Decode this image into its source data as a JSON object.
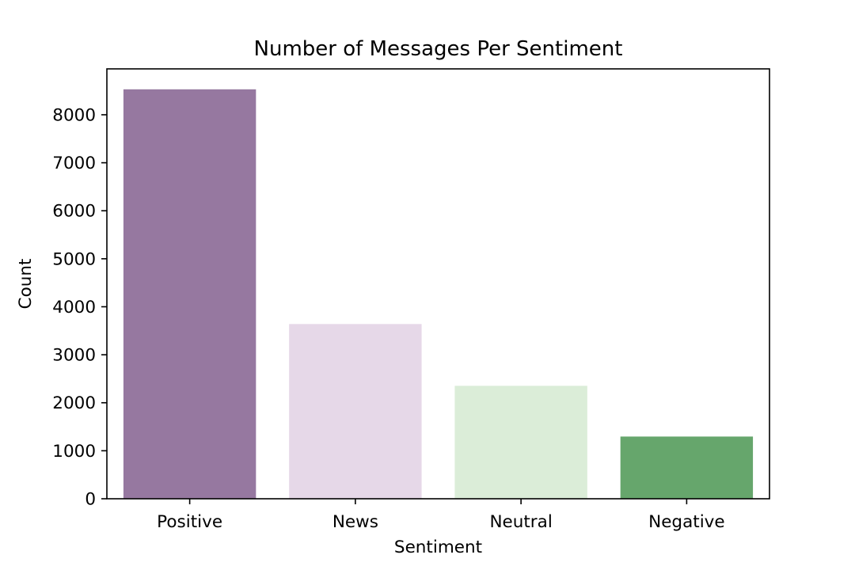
{
  "chart_data": {
    "type": "bar",
    "title": "Number of Messages Per Sentiment",
    "xlabel": "Sentiment",
    "ylabel": "Count",
    "categories": [
      "Positive",
      "News",
      "Neutral",
      "Negative"
    ],
    "values": [
      8530,
      3640,
      2353,
      1296
    ],
    "colors": [
      "#9678a0",
      "#e6d8e8",
      "#dbedd8",
      "#66a66c"
    ],
    "ylim": [
      0,
      8956
    ],
    "yticks": [
      0,
      1000,
      2000,
      3000,
      4000,
      5000,
      6000,
      7000,
      8000
    ],
    "ytick_labels": [
      "0",
      "1000",
      "2000",
      "3000",
      "4000",
      "5000",
      "6000",
      "7000",
      "8000"
    ],
    "grid": false,
    "legend": "none"
  }
}
